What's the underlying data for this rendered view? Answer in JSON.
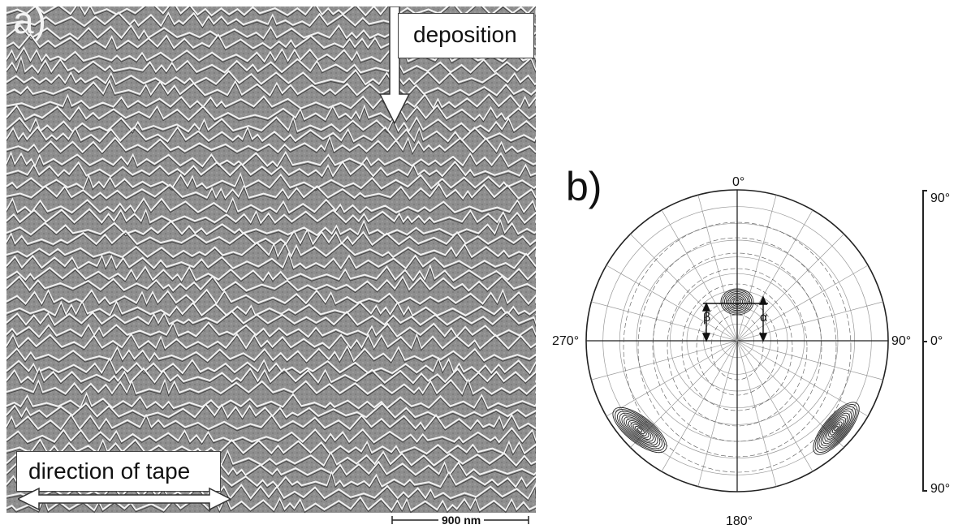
{
  "panel_a": {
    "label": "a)",
    "deposition_label": "deposition",
    "tape_label": "direction of tape",
    "scale_label": "900 nm"
  },
  "panel_b": {
    "label": "b)",
    "angle_top": "0°",
    "angle_right": "90°",
    "angle_bottom": "180°",
    "angle_left": "270°",
    "alpha": "α",
    "beta": "β",
    "scale_top": "90°",
    "scale_mid": "0°",
    "scale_bottom": "90°"
  }
}
